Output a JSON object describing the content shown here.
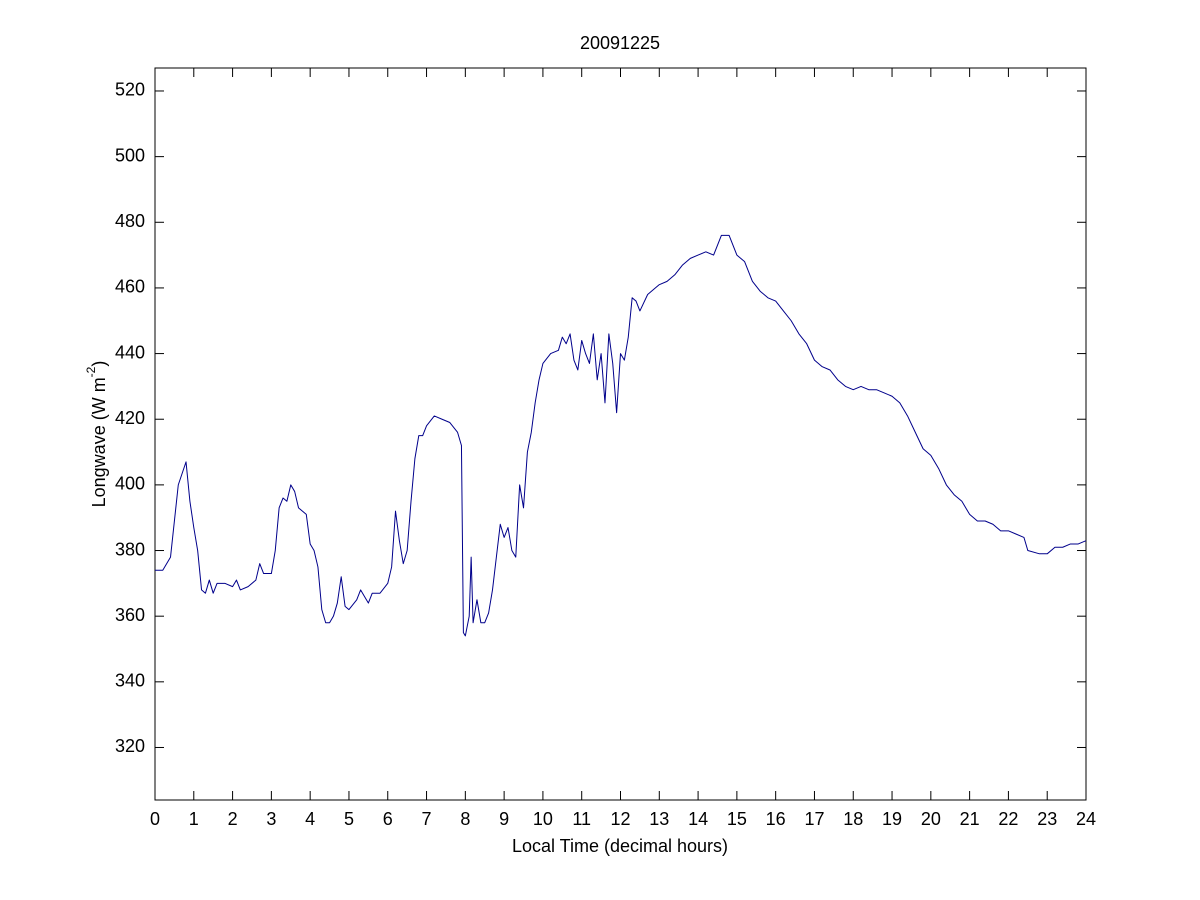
{
  "chart_data": {
    "type": "line",
    "title": "20091225",
    "x_label": "Local Time (decimal hours)",
    "y_label": {
      "text": "Longwave (W m",
      "superscript": "-2",
      "suffix": ")"
    },
    "color": "#00008b",
    "xlim": [
      0,
      24
    ],
    "ylim": [
      304,
      527
    ],
    "xticks": [
      0,
      1,
      2,
      3,
      4,
      5,
      6,
      7,
      8,
      9,
      10,
      11,
      12,
      13,
      14,
      15,
      16,
      17,
      18,
      19,
      20,
      21,
      22,
      23,
      24
    ],
    "yticks": [
      320,
      340,
      360,
      380,
      400,
      420,
      440,
      460,
      480,
      500,
      520
    ],
    "x": [
      0,
      0.2,
      0.4,
      0.6,
      0.8,
      0.9,
      1.0,
      1.1,
      1.2,
      1.3,
      1.4,
      1.5,
      1.6,
      1.8,
      2.0,
      2.1,
      2.2,
      2.4,
      2.6,
      2.7,
      2.8,
      3.0,
      3.1,
      3.2,
      3.3,
      3.4,
      3.5,
      3.6,
      3.7,
      3.9,
      4.0,
      4.1,
      4.2,
      4.3,
      4.4,
      4.5,
      4.6,
      4.7,
      4.8,
      4.9,
      5.0,
      5.2,
      5.3,
      5.4,
      5.5,
      5.6,
      5.8,
      6.0,
      6.1,
      6.2,
      6.3,
      6.4,
      6.5,
      6.6,
      6.7,
      6.8,
      6.9,
      7.0,
      7.2,
      7.4,
      7.6,
      7.8,
      7.9,
      7.95,
      8.0,
      8.1,
      8.15,
      8.2,
      8.3,
      8.4,
      8.5,
      8.6,
      8.7,
      8.8,
      8.9,
      9.0,
      9.1,
      9.2,
      9.3,
      9.4,
      9.5,
      9.6,
      9.7,
      9.8,
      9.9,
      10.0,
      10.2,
      10.4,
      10.5,
      10.6,
      10.7,
      10.8,
      10.9,
      11.0,
      11.1,
      11.2,
      11.3,
      11.4,
      11.5,
      11.6,
      11.7,
      11.8,
      11.9,
      12.0,
      12.1,
      12.2,
      12.3,
      12.4,
      12.5,
      12.7,
      12.9,
      13.0,
      13.2,
      13.4,
      13.6,
      13.8,
      14.0,
      14.2,
      14.4,
      14.6,
      14.8,
      15.0,
      15.2,
      15.4,
      15.6,
      15.8,
      16.0,
      16.2,
      16.4,
      16.6,
      16.8,
      17.0,
      17.2,
      17.4,
      17.6,
      17.8,
      18.0,
      18.2,
      18.4,
      18.6,
      18.8,
      19.0,
      19.2,
      19.4,
      19.6,
      19.8,
      20.0,
      20.2,
      20.4,
      20.6,
      20.8,
      21.0,
      21.2,
      21.4,
      21.6,
      21.8,
      22.0,
      22.2,
      22.4,
      22.5,
      22.8,
      23.0,
      23.2,
      23.4,
      23.6,
      23.8,
      24.0
    ],
    "values": [
      374,
      374,
      378,
      400,
      407,
      395,
      387,
      380,
      368,
      367,
      371,
      367,
      370,
      370,
      369,
      371,
      368,
      369,
      371,
      376,
      373,
      373,
      380,
      393,
      396,
      395,
      400,
      398,
      393,
      391,
      382,
      380,
      375,
      362,
      358,
      358,
      360,
      364,
      372,
      363,
      362,
      365,
      368,
      366,
      364,
      367,
      367,
      370,
      375,
      392,
      383,
      376,
      380,
      395,
      408,
      415,
      415,
      418,
      421,
      420,
      419,
      416,
      412,
      355,
      354,
      360,
      378,
      358,
      365,
      358,
      358,
      361,
      368,
      378,
      388,
      384,
      387,
      380,
      378,
      400,
      393,
      410,
      416,
      425,
      432,
      437,
      440,
      441,
      445,
      443,
      446,
      438,
      435,
      444,
      440,
      437,
      446,
      432,
      440,
      425,
      446,
      437,
      422,
      440,
      438,
      445,
      457,
      456,
      453,
      458,
      460,
      461,
      462,
      464,
      467,
      469,
      470,
      471,
      470,
      476,
      476,
      470,
      468,
      462,
      459,
      457,
      456,
      453,
      450,
      446,
      443,
      438,
      436,
      435,
      432,
      430,
      429,
      430,
      429,
      429,
      428,
      427,
      425,
      421,
      416,
      411,
      409,
      405,
      400,
      397,
      395,
      391,
      389,
      389,
      388,
      386,
      386,
      385,
      384,
      380,
      379,
      379,
      381,
      381,
      382,
      382,
      383
    ]
  }
}
